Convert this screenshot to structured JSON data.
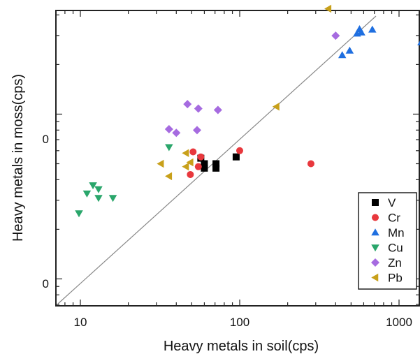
{
  "chart_data": {
    "type": "scatter",
    "title": "",
    "xlabel": "Heavy metals in soil(cps)",
    "ylabel": "Heavy metals in moss(cps)",
    "xscale": "log",
    "yscale": "log",
    "x_ticks": [
      10,
      100,
      1000
    ],
    "x_tick_labels": [
      "10",
      "100",
      "1000"
    ],
    "y_tick_labels": [
      "0",
      "0"
    ],
    "xlim": [
      7,
      1400
    ],
    "grid": false,
    "legend_position": "bottom-right",
    "reference_line": "1:1",
    "series": [
      {
        "name": "V",
        "marker": "square",
        "color": "#000000",
        "points": [
          [
            57,
            54
          ],
          [
            60,
            50
          ],
          [
            60,
            47
          ],
          [
            71,
            50
          ],
          [
            71,
            47
          ],
          [
            95,
            55
          ]
        ]
      },
      {
        "name": "Cr",
        "marker": "circle",
        "color": "#e8383d",
        "points": [
          [
            51,
            59
          ],
          [
            57,
            55
          ],
          [
            55,
            48
          ],
          [
            49,
            43
          ],
          [
            100,
            60
          ],
          [
            280,
            50
          ]
        ]
      },
      {
        "name": "Mn",
        "marker": "triangle-up",
        "color": "#1f6fe0",
        "points": [
          [
            440,
            228
          ],
          [
            490,
            243
          ],
          [
            545,
            308
          ],
          [
            565,
            328
          ],
          [
            580,
            313
          ],
          [
            680,
            326
          ],
          [
            1380,
            273
          ]
        ]
      },
      {
        "name": "Cu",
        "marker": "triangle-down",
        "color": "#2aa66b",
        "points": [
          [
            12,
            37
          ],
          [
            13,
            35
          ],
          [
            11,
            33
          ],
          [
            13,
            31
          ],
          [
            16,
            31
          ],
          [
            9.8,
            25
          ],
          [
            36,
            63
          ]
        ]
      },
      {
        "name": "Zn",
        "marker": "diamond",
        "color": "#a66be0",
        "points": [
          [
            47,
            115
          ],
          [
            55,
            108
          ],
          [
            73,
            106
          ],
          [
            36,
            81
          ],
          [
            40,
            77
          ],
          [
            54,
            80
          ],
          [
            400,
            299
          ]
        ]
      },
      {
        "name": "Pb",
        "marker": "triangle-left",
        "color": "#c8a01a",
        "points": [
          [
            360,
            436
          ],
          [
            170,
            111
          ],
          [
            46,
            58
          ],
          [
            49,
            51
          ],
          [
            32,
            50
          ],
          [
            46,
            48
          ],
          [
            36,
            42
          ]
        ]
      }
    ]
  }
}
